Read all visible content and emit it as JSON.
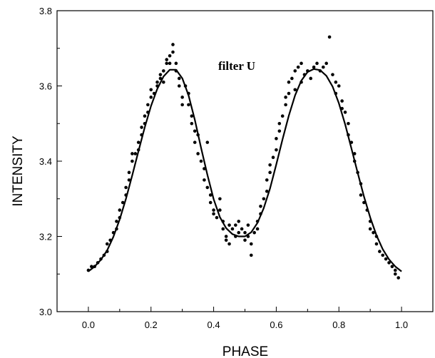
{
  "chart_data": {
    "type": "scatter",
    "xlabel": "PHASE",
    "ylabel": "INTENSITY",
    "xlim": [
      -0.1,
      1.1
    ],
    "ylim": [
      3.0,
      3.8
    ],
    "x_ticks": [
      "0.0",
      "0.2",
      "0.4",
      "0.6",
      "0.8",
      "1.0"
    ],
    "y_ticks": [
      "3.0",
      "3.2",
      "3.4",
      "3.6",
      "3.8"
    ],
    "annotation": "filter U",
    "grid": false,
    "series": [
      {
        "kind": "points",
        "points": [
          [
            0.0,
            3.11
          ],
          [
            0.01,
            3.12
          ],
          [
            0.02,
            3.12
          ],
          [
            0.03,
            3.13
          ],
          [
            0.04,
            3.14
          ],
          [
            0.05,
            3.15
          ],
          [
            0.06,
            3.16
          ],
          [
            0.06,
            3.18
          ],
          [
            0.07,
            3.19
          ],
          [
            0.08,
            3.21
          ],
          [
            0.09,
            3.22
          ],
          [
            0.09,
            3.24
          ],
          [
            0.1,
            3.25
          ],
          [
            0.1,
            3.27
          ],
          [
            0.11,
            3.29
          ],
          [
            0.12,
            3.31
          ],
          [
            0.12,
            3.33
          ],
          [
            0.13,
            3.35
          ],
          [
            0.13,
            3.37
          ],
          [
            0.14,
            3.4
          ],
          [
            0.14,
            3.42
          ],
          [
            0.15,
            3.42
          ],
          [
            0.16,
            3.43
          ],
          [
            0.16,
            3.45
          ],
          [
            0.17,
            3.47
          ],
          [
            0.17,
            3.49
          ],
          [
            0.18,
            3.5
          ],
          [
            0.18,
            3.52
          ],
          [
            0.19,
            3.53
          ],
          [
            0.19,
            3.55
          ],
          [
            0.2,
            3.57
          ],
          [
            0.2,
            3.59
          ],
          [
            0.21,
            3.58
          ],
          [
            0.22,
            3.6
          ],
          [
            0.22,
            3.61
          ],
          [
            0.23,
            3.62
          ],
          [
            0.23,
            3.63
          ],
          [
            0.24,
            3.64
          ],
          [
            0.24,
            3.61
          ],
          [
            0.25,
            3.66
          ],
          [
            0.25,
            3.67
          ],
          [
            0.26,
            3.68
          ],
          [
            0.26,
            3.66
          ],
          [
            0.27,
            3.69
          ],
          [
            0.27,
            3.71
          ],
          [
            0.28,
            3.66
          ],
          [
            0.28,
            3.64
          ],
          [
            0.29,
            3.62
          ],
          [
            0.29,
            3.6
          ],
          [
            0.3,
            3.57
          ],
          [
            0.3,
            3.55
          ],
          [
            0.31,
            3.6
          ],
          [
            0.32,
            3.58
          ],
          [
            0.32,
            3.55
          ],
          [
            0.33,
            3.52
          ],
          [
            0.33,
            3.5
          ],
          [
            0.34,
            3.48
          ],
          [
            0.34,
            3.45
          ],
          [
            0.35,
            3.47
          ],
          [
            0.35,
            3.42
          ],
          [
            0.36,
            3.4
          ],
          [
            0.37,
            3.38
          ],
          [
            0.37,
            3.35
          ],
          [
            0.38,
            3.33
          ],
          [
            0.38,
            3.45
          ],
          [
            0.39,
            3.31
          ],
          [
            0.39,
            3.29
          ],
          [
            0.4,
            3.27
          ],
          [
            0.4,
            3.26
          ],
          [
            0.41,
            3.25
          ],
          [
            0.42,
            3.3
          ],
          [
            0.42,
            3.27
          ],
          [
            0.43,
            3.24
          ],
          [
            0.43,
            3.22
          ],
          [
            0.44,
            3.2
          ],
          [
            0.44,
            3.19
          ],
          [
            0.45,
            3.23
          ],
          [
            0.45,
            3.18
          ],
          [
            0.46,
            3.22
          ],
          [
            0.47,
            3.2
          ],
          [
            0.47,
            3.23
          ],
          [
            0.48,
            3.21
          ],
          [
            0.48,
            3.24
          ],
          [
            0.49,
            3.22
          ],
          [
            0.5,
            3.21
          ],
          [
            0.5,
            3.19
          ],
          [
            0.51,
            3.23
          ],
          [
            0.51,
            3.2
          ],
          [
            0.52,
            3.15
          ],
          [
            0.52,
            3.18
          ],
          [
            0.53,
            3.21
          ],
          [
            0.54,
            3.22
          ],
          [
            0.54,
            3.24
          ],
          [
            0.55,
            3.26
          ],
          [
            0.55,
            3.28
          ],
          [
            0.56,
            3.3
          ],
          [
            0.57,
            3.32
          ],
          [
            0.57,
            3.35
          ],
          [
            0.58,
            3.37
          ],
          [
            0.58,
            3.39
          ],
          [
            0.59,
            3.41
          ],
          [
            0.6,
            3.43
          ],
          [
            0.6,
            3.46
          ],
          [
            0.61,
            3.48
          ],
          [
            0.61,
            3.5
          ],
          [
            0.62,
            3.52
          ],
          [
            0.63,
            3.55
          ],
          [
            0.63,
            3.57
          ],
          [
            0.64,
            3.58
          ],
          [
            0.64,
            3.61
          ],
          [
            0.65,
            3.62
          ],
          [
            0.66,
            3.59
          ],
          [
            0.66,
            3.64
          ],
          [
            0.67,
            3.65
          ],
          [
            0.68,
            3.61
          ],
          [
            0.68,
            3.66
          ],
          [
            0.69,
            3.63
          ],
          [
            0.7,
            3.64
          ],
          [
            0.71,
            3.62
          ],
          [
            0.72,
            3.65
          ],
          [
            0.73,
            3.66
          ],
          [
            0.74,
            3.64
          ],
          [
            0.75,
            3.65
          ],
          [
            0.76,
            3.66
          ],
          [
            0.77,
            3.73
          ],
          [
            0.78,
            3.63
          ],
          [
            0.79,
            3.61
          ],
          [
            0.79,
            3.58
          ],
          [
            0.8,
            3.6
          ],
          [
            0.81,
            3.56
          ],
          [
            0.81,
            3.54
          ],
          [
            0.82,
            3.53
          ],
          [
            0.83,
            3.5
          ],
          [
            0.83,
            3.47
          ],
          [
            0.84,
            3.45
          ],
          [
            0.85,
            3.42
          ],
          [
            0.85,
            3.4
          ],
          [
            0.86,
            3.37
          ],
          [
            0.87,
            3.34
          ],
          [
            0.87,
            3.31
          ],
          [
            0.88,
            3.29
          ],
          [
            0.89,
            3.27
          ],
          [
            0.9,
            3.24
          ],
          [
            0.9,
            3.22
          ],
          [
            0.91,
            3.21
          ],
          [
            0.92,
            3.2
          ],
          [
            0.92,
            3.18
          ],
          [
            0.93,
            3.16
          ],
          [
            0.94,
            3.15
          ],
          [
            0.95,
            3.14
          ],
          [
            0.96,
            3.13
          ],
          [
            0.97,
            3.12
          ],
          [
            0.98,
            3.11
          ],
          [
            0.98,
            3.1
          ],
          [
            0.99,
            3.09
          ]
        ]
      },
      {
        "kind": "fit",
        "points": [
          [
            0.0,
            3.107
          ],
          [
            0.02,
            3.12
          ],
          [
            0.04,
            3.138
          ],
          [
            0.06,
            3.163
          ],
          [
            0.08,
            3.199
          ],
          [
            0.1,
            3.245
          ],
          [
            0.12,
            3.3
          ],
          [
            0.14,
            3.362
          ],
          [
            0.16,
            3.427
          ],
          [
            0.18,
            3.49
          ],
          [
            0.2,
            3.547
          ],
          [
            0.22,
            3.592
          ],
          [
            0.24,
            3.625
          ],
          [
            0.26,
            3.643
          ],
          [
            0.28,
            3.643
          ],
          [
            0.3,
            3.62
          ],
          [
            0.32,
            3.575
          ],
          [
            0.34,
            3.51
          ],
          [
            0.36,
            3.435
          ],
          [
            0.38,
            3.364
          ],
          [
            0.4,
            3.299
          ],
          [
            0.42,
            3.251
          ],
          [
            0.44,
            3.222
          ],
          [
            0.46,
            3.206
          ],
          [
            0.48,
            3.2
          ],
          [
            0.5,
            3.2
          ],
          [
            0.52,
            3.211
          ],
          [
            0.54,
            3.236
          ],
          [
            0.56,
            3.275
          ],
          [
            0.58,
            3.327
          ],
          [
            0.6,
            3.391
          ],
          [
            0.62,
            3.458
          ],
          [
            0.64,
            3.521
          ],
          [
            0.66,
            3.575
          ],
          [
            0.68,
            3.614
          ],
          [
            0.7,
            3.637
          ],
          [
            0.72,
            3.645
          ],
          [
            0.74,
            3.642
          ],
          [
            0.76,
            3.627
          ],
          [
            0.78,
            3.598
          ],
          [
            0.8,
            3.554
          ],
          [
            0.82,
            3.498
          ],
          [
            0.84,
            3.434
          ],
          [
            0.86,
            3.369
          ],
          [
            0.88,
            3.306
          ],
          [
            0.9,
            3.25
          ],
          [
            0.92,
            3.203
          ],
          [
            0.94,
            3.166
          ],
          [
            0.96,
            3.139
          ],
          [
            0.98,
            3.12
          ],
          [
            1.0,
            3.107
          ]
        ]
      }
    ]
  }
}
